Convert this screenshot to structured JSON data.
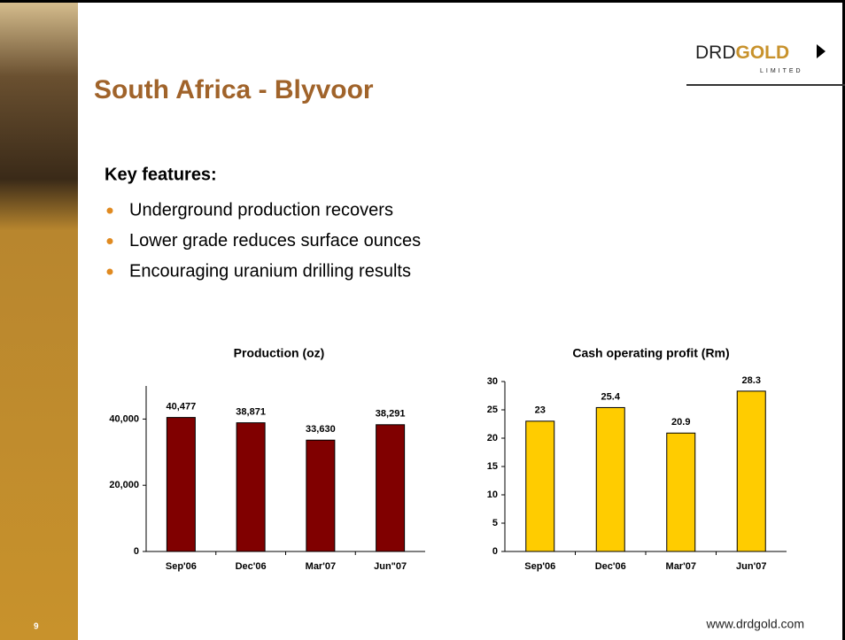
{
  "slide": {
    "title": "South Africa - Blyvoor",
    "logo": {
      "text": "DRD",
      "highlight": "GOLD",
      "subtitle": "LIMITED"
    },
    "heading": "Key features:",
    "bullets": [
      "Underground production recovers",
      "Lower grade reduces surface ounces",
      "Encouraging uranium drilling results"
    ],
    "page_number": "9",
    "footer": "www.drdgold.com"
  },
  "chart_data": [
    {
      "type": "bar",
      "title": "Production (oz)",
      "categories": [
        "Sep'06",
        "Dec'06",
        "Mar'07",
        "Jun\"07"
      ],
      "values": [
        40477,
        38871,
        33630,
        38291
      ],
      "value_labels": [
        "40,477",
        "38,871",
        "33,630",
        "38,291"
      ],
      "color": "#800000",
      "ylim": [
        0,
        50000
      ],
      "yticks": [
        0,
        {
          "value": 20000,
          "label": "20,000"
        },
        {
          "value": 40000,
          "label": "40,000"
        }
      ]
    },
    {
      "type": "bar",
      "title": "Cash operating profit (Rm)",
      "categories": [
        "Sep'06",
        "Dec'06",
        "Mar'07",
        "Jun'07"
      ],
      "values": [
        23,
        25.4,
        20.9,
        28.3
      ],
      "color": "#ffcc00",
      "ylim": [
        0,
        30
      ],
      "yticks": [
        0,
        5,
        10,
        15,
        20,
        25,
        30
      ]
    }
  ]
}
